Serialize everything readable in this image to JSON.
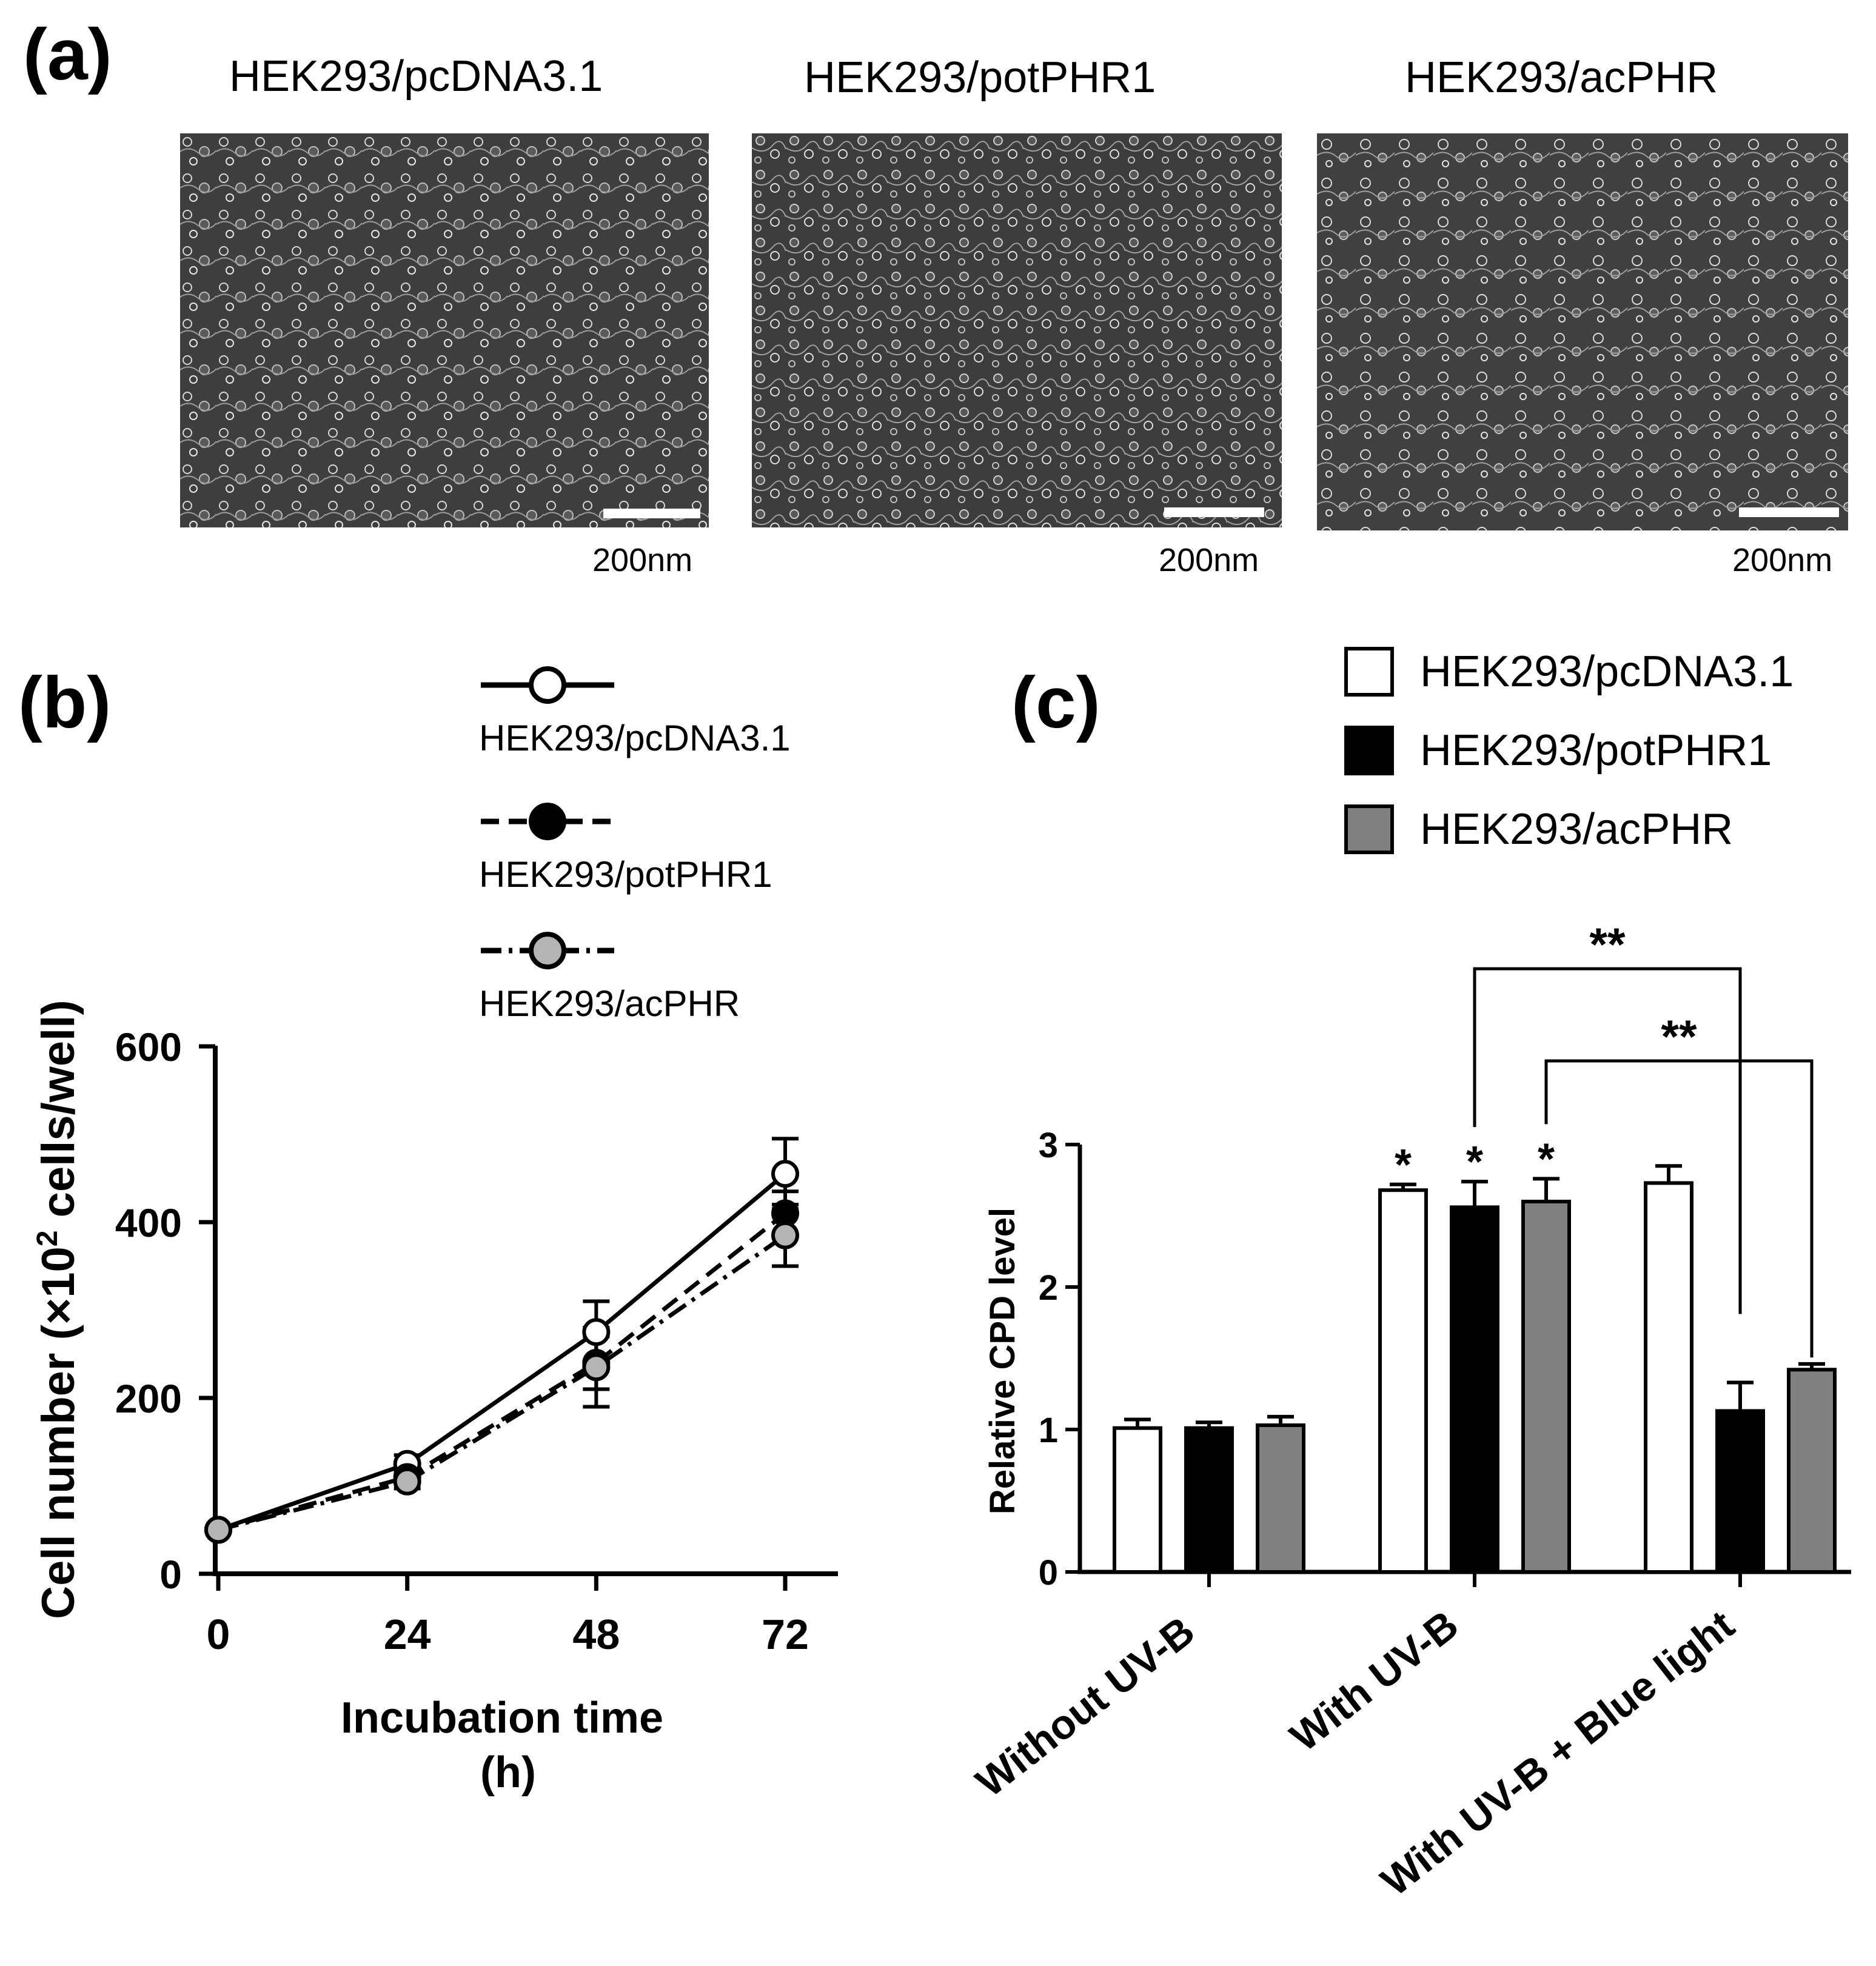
{
  "panel_a": {
    "letter": "(a)",
    "images": [
      {
        "title": "HEK293/pcDNA3.1",
        "scale_label": "200nm"
      },
      {
        "title": "HEK293/potPHR1",
        "scale_label": "200nm"
      },
      {
        "title": "HEK293/acPHR",
        "scale_label": "200nm"
      }
    ]
  },
  "chart_data": [
    {
      "panel": "(b)",
      "type": "line",
      "xlabel_line1": "Incubation time",
      "xlabel_line2": "(h)",
      "ylabel": "Cell number (×10² cells/well)",
      "ylabel_prefix": "Cell number (×10",
      "ylabel_sup": "2",
      "ylabel_suffix": " cells/well)",
      "x": [
        0,
        24,
        48,
        72
      ],
      "x_tick_labels": [
        "0",
        "24",
        "48",
        "72"
      ],
      "ylim": [
        0,
        600
      ],
      "y_ticks": [
        0,
        200,
        400,
        600
      ],
      "y_tick_labels": [
        "0",
        "200",
        "400",
        "600"
      ],
      "legend_position": "top",
      "series": [
        {
          "name": "HEK293/pcDNA3.1",
          "values": [
            50,
            125,
            275,
            455
          ],
          "errors": [
            0,
            10,
            35,
            40
          ],
          "marker_fill": "#ffffff",
          "line_style": "solid"
        },
        {
          "name": "HEK293/potPHR1",
          "values": [
            50,
            110,
            240,
            410
          ],
          "errors": [
            0,
            8,
            30,
            25
          ],
          "marker_fill": "#000000",
          "line_style": "dashed"
        },
        {
          "name": "HEK293/acPHR",
          "values": [
            50,
            105,
            235,
            385
          ],
          "errors": [
            0,
            8,
            45,
            35
          ],
          "marker_fill": "#b4b4b4",
          "line_style": "dashdot"
        }
      ]
    },
    {
      "panel": "(c)",
      "type": "bar",
      "ylabel": "Relative CPD level",
      "categories": [
        "Without UV-B",
        "With UV-B",
        "With UV-B + Blue light"
      ],
      "ylim": [
        0,
        3
      ],
      "y_ticks": [
        0,
        1,
        2,
        3
      ],
      "y_tick_labels": [
        "0",
        "1",
        "2",
        "3"
      ],
      "legend_position": "top-right",
      "series": [
        {
          "name": "HEK293/pcDNA3.1",
          "color": "#ffffff",
          "values": [
            1.01,
            2.68,
            2.73
          ],
          "errors": [
            0.06,
            0.04,
            0.12
          ]
        },
        {
          "name": "HEK293/potPHR1",
          "color": "#000000",
          "values": [
            1.01,
            2.56,
            1.13
          ],
          "errors": [
            0.04,
            0.18,
            0.2
          ]
        },
        {
          "name": "HEK293/acPHR",
          "color": "#808080",
          "values": [
            1.03,
            2.6,
            1.42
          ],
          "errors": [
            0.06,
            0.16,
            0.04
          ]
        }
      ],
      "star_marks": [
        {
          "category": 1,
          "series": 0,
          "text": "*"
        },
        {
          "category": 1,
          "series": 1,
          "text": "*"
        },
        {
          "category": 1,
          "series": 2,
          "text": "*"
        }
      ],
      "brackets": [
        {
          "from": [
            1,
            1
          ],
          "to": [
            2,
            1
          ],
          "text": "**"
        },
        {
          "from": [
            1,
            2
          ],
          "to": [
            2,
            2
          ],
          "text": "**"
        }
      ]
    }
  ]
}
